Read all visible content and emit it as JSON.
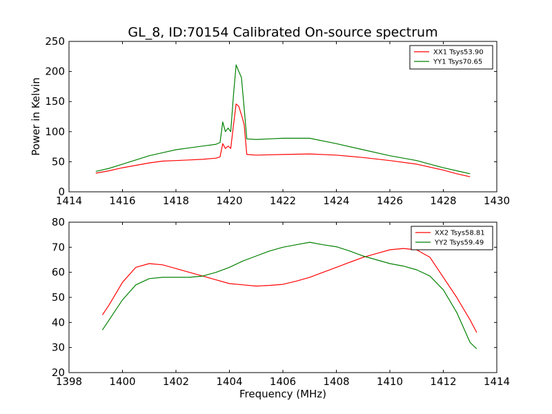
{
  "figure": {
    "title": "GL_8, ID:70154 Calibrated On-source spectrum"
  },
  "chart_data": [
    {
      "type": "line",
      "title": "GL_8, ID:70154 Calibrated On-source spectrum",
      "xlabel": "",
      "ylabel": "Power in Kelvin",
      "xlim": [
        1414,
        1430
      ],
      "ylim": [
        0,
        250
      ],
      "xticks": [
        1414,
        1416,
        1418,
        1420,
        1422,
        1424,
        1426,
        1428,
        1430
      ],
      "yticks": [
        0,
        50,
        100,
        150,
        200,
        250
      ],
      "grid": false,
      "legend": "top-right",
      "series": [
        {
          "name": "XX1 Tsys53.90",
          "color": "#ff0000",
          "points": [
            [
              1415,
              31
            ],
            [
              1415.5,
              35
            ],
            [
              1416,
              40
            ],
            [
              1416.5,
              44
            ],
            [
              1417,
              48
            ],
            [
              1417.5,
              51
            ],
            [
              1418,
              52
            ],
            [
              1418.5,
              53
            ],
            [
              1419,
              54
            ],
            [
              1419.5,
              56
            ],
            [
              1419.65,
              58
            ],
            [
              1419.75,
              80
            ],
            [
              1419.85,
              72
            ],
            [
              1419.95,
              76
            ],
            [
              1420.05,
              72
            ],
            [
              1420.15,
              110
            ],
            [
              1420.25,
              146
            ],
            [
              1420.35,
              142
            ],
            [
              1420.45,
              128
            ],
            [
              1420.55,
              112
            ],
            [
              1420.65,
              62
            ],
            [
              1421,
              61
            ],
            [
              1422,
              62
            ],
            [
              1423,
              63
            ],
            [
              1424,
              61
            ],
            [
              1425,
              57
            ],
            [
              1426,
              52
            ],
            [
              1427,
              46
            ],
            [
              1428,
              36
            ],
            [
              1428.5,
              30
            ],
            [
              1429,
              25
            ]
          ]
        },
        {
          "name": "YY1 Tsys70.65",
          "color": "#008000",
          "points": [
            [
              1415,
              34
            ],
            [
              1415.5,
              39
            ],
            [
              1416,
              46
            ],
            [
              1416.5,
              53
            ],
            [
              1417,
              60
            ],
            [
              1417.5,
              65
            ],
            [
              1418,
              70
            ],
            [
              1418.5,
              73
            ],
            [
              1419,
              76
            ],
            [
              1419.5,
              79
            ],
            [
              1419.65,
              82
            ],
            [
              1419.75,
              116
            ],
            [
              1419.85,
              100
            ],
            [
              1419.95,
              106
            ],
            [
              1420.05,
              100
            ],
            [
              1420.15,
              160
            ],
            [
              1420.25,
              211
            ],
            [
              1420.35,
              200
            ],
            [
              1420.45,
              190
            ],
            [
              1420.55,
              140
            ],
            [
              1420.65,
              88
            ],
            [
              1421,
              87
            ],
            [
              1422,
              89
            ],
            [
              1423,
              89
            ],
            [
              1424,
              80
            ],
            [
              1425,
              70
            ],
            [
              1426,
              60
            ],
            [
              1427,
              52
            ],
            [
              1428,
              40
            ],
            [
              1428.5,
              35
            ],
            [
              1429,
              30
            ]
          ]
        }
      ]
    },
    {
      "type": "line",
      "title": "",
      "xlabel": "Frequency (MHz)",
      "ylabel": "",
      "xlim": [
        1398,
        1414
      ],
      "ylim": [
        20,
        80
      ],
      "xticks": [
        1398,
        1400,
        1402,
        1404,
        1406,
        1408,
        1410,
        1412,
        1414
      ],
      "yticks": [
        20,
        30,
        40,
        50,
        60,
        70,
        80
      ],
      "grid": false,
      "legend": "top-right",
      "series": [
        {
          "name": "XX2 Tsys58.81",
          "color": "#ff0000",
          "points": [
            [
              1399.25,
              43
            ],
            [
              1399.5,
              47
            ],
            [
              1400,
              56
            ],
            [
              1400.5,
              62
            ],
            [
              1401,
              63.5
            ],
            [
              1401.5,
              63
            ],
            [
              1402,
              61.5
            ],
            [
              1402.5,
              60
            ],
            [
              1403,
              58.5
            ],
            [
              1403.5,
              57
            ],
            [
              1404,
              55.5
            ],
            [
              1404.5,
              55
            ],
            [
              1405,
              54.5
            ],
            [
              1405.5,
              54.8
            ],
            [
              1406,
              55.2
            ],
            [
              1406.5,
              56.5
            ],
            [
              1407,
              58
            ],
            [
              1407.5,
              60
            ],
            [
              1408,
              62
            ],
            [
              1408.5,
              64
            ],
            [
              1409,
              66
            ],
            [
              1409.5,
              67.5
            ],
            [
              1410,
              69
            ],
            [
              1410.5,
              69.5
            ],
            [
              1411,
              69
            ],
            [
              1411.5,
              66
            ],
            [
              1412,
              58
            ],
            [
              1412.5,
              50
            ],
            [
              1413,
              41
            ],
            [
              1413.25,
              36
            ]
          ]
        },
        {
          "name": "YY2 Tsys59.49",
          "color": "#008000",
          "points": [
            [
              1399.25,
              37
            ],
            [
              1399.5,
              41
            ],
            [
              1400,
              49
            ],
            [
              1400.5,
              55
            ],
            [
              1401,
              57.5
            ],
            [
              1401.5,
              58
            ],
            [
              1402,
              58
            ],
            [
              1402.5,
              58
            ],
            [
              1403,
              58.5
            ],
            [
              1403.5,
              60
            ],
            [
              1404,
              62
            ],
            [
              1404.5,
              64.5
            ],
            [
              1405,
              66.5
            ],
            [
              1405.5,
              68.5
            ],
            [
              1406,
              70
            ],
            [
              1406.5,
              71
            ],
            [
              1407,
              72
            ],
            [
              1407.5,
              71
            ],
            [
              1408,
              70.2
            ],
            [
              1408.5,
              68.5
            ],
            [
              1409,
              66.5
            ],
            [
              1409.5,
              65
            ],
            [
              1410,
              63.5
            ],
            [
              1410.5,
              62.5
            ],
            [
              1411,
              61
            ],
            [
              1411.5,
              58.5
            ],
            [
              1412,
              53
            ],
            [
              1412.5,
              44
            ],
            [
              1413,
              32
            ],
            [
              1413.25,
              29.5
            ]
          ]
        }
      ]
    }
  ]
}
